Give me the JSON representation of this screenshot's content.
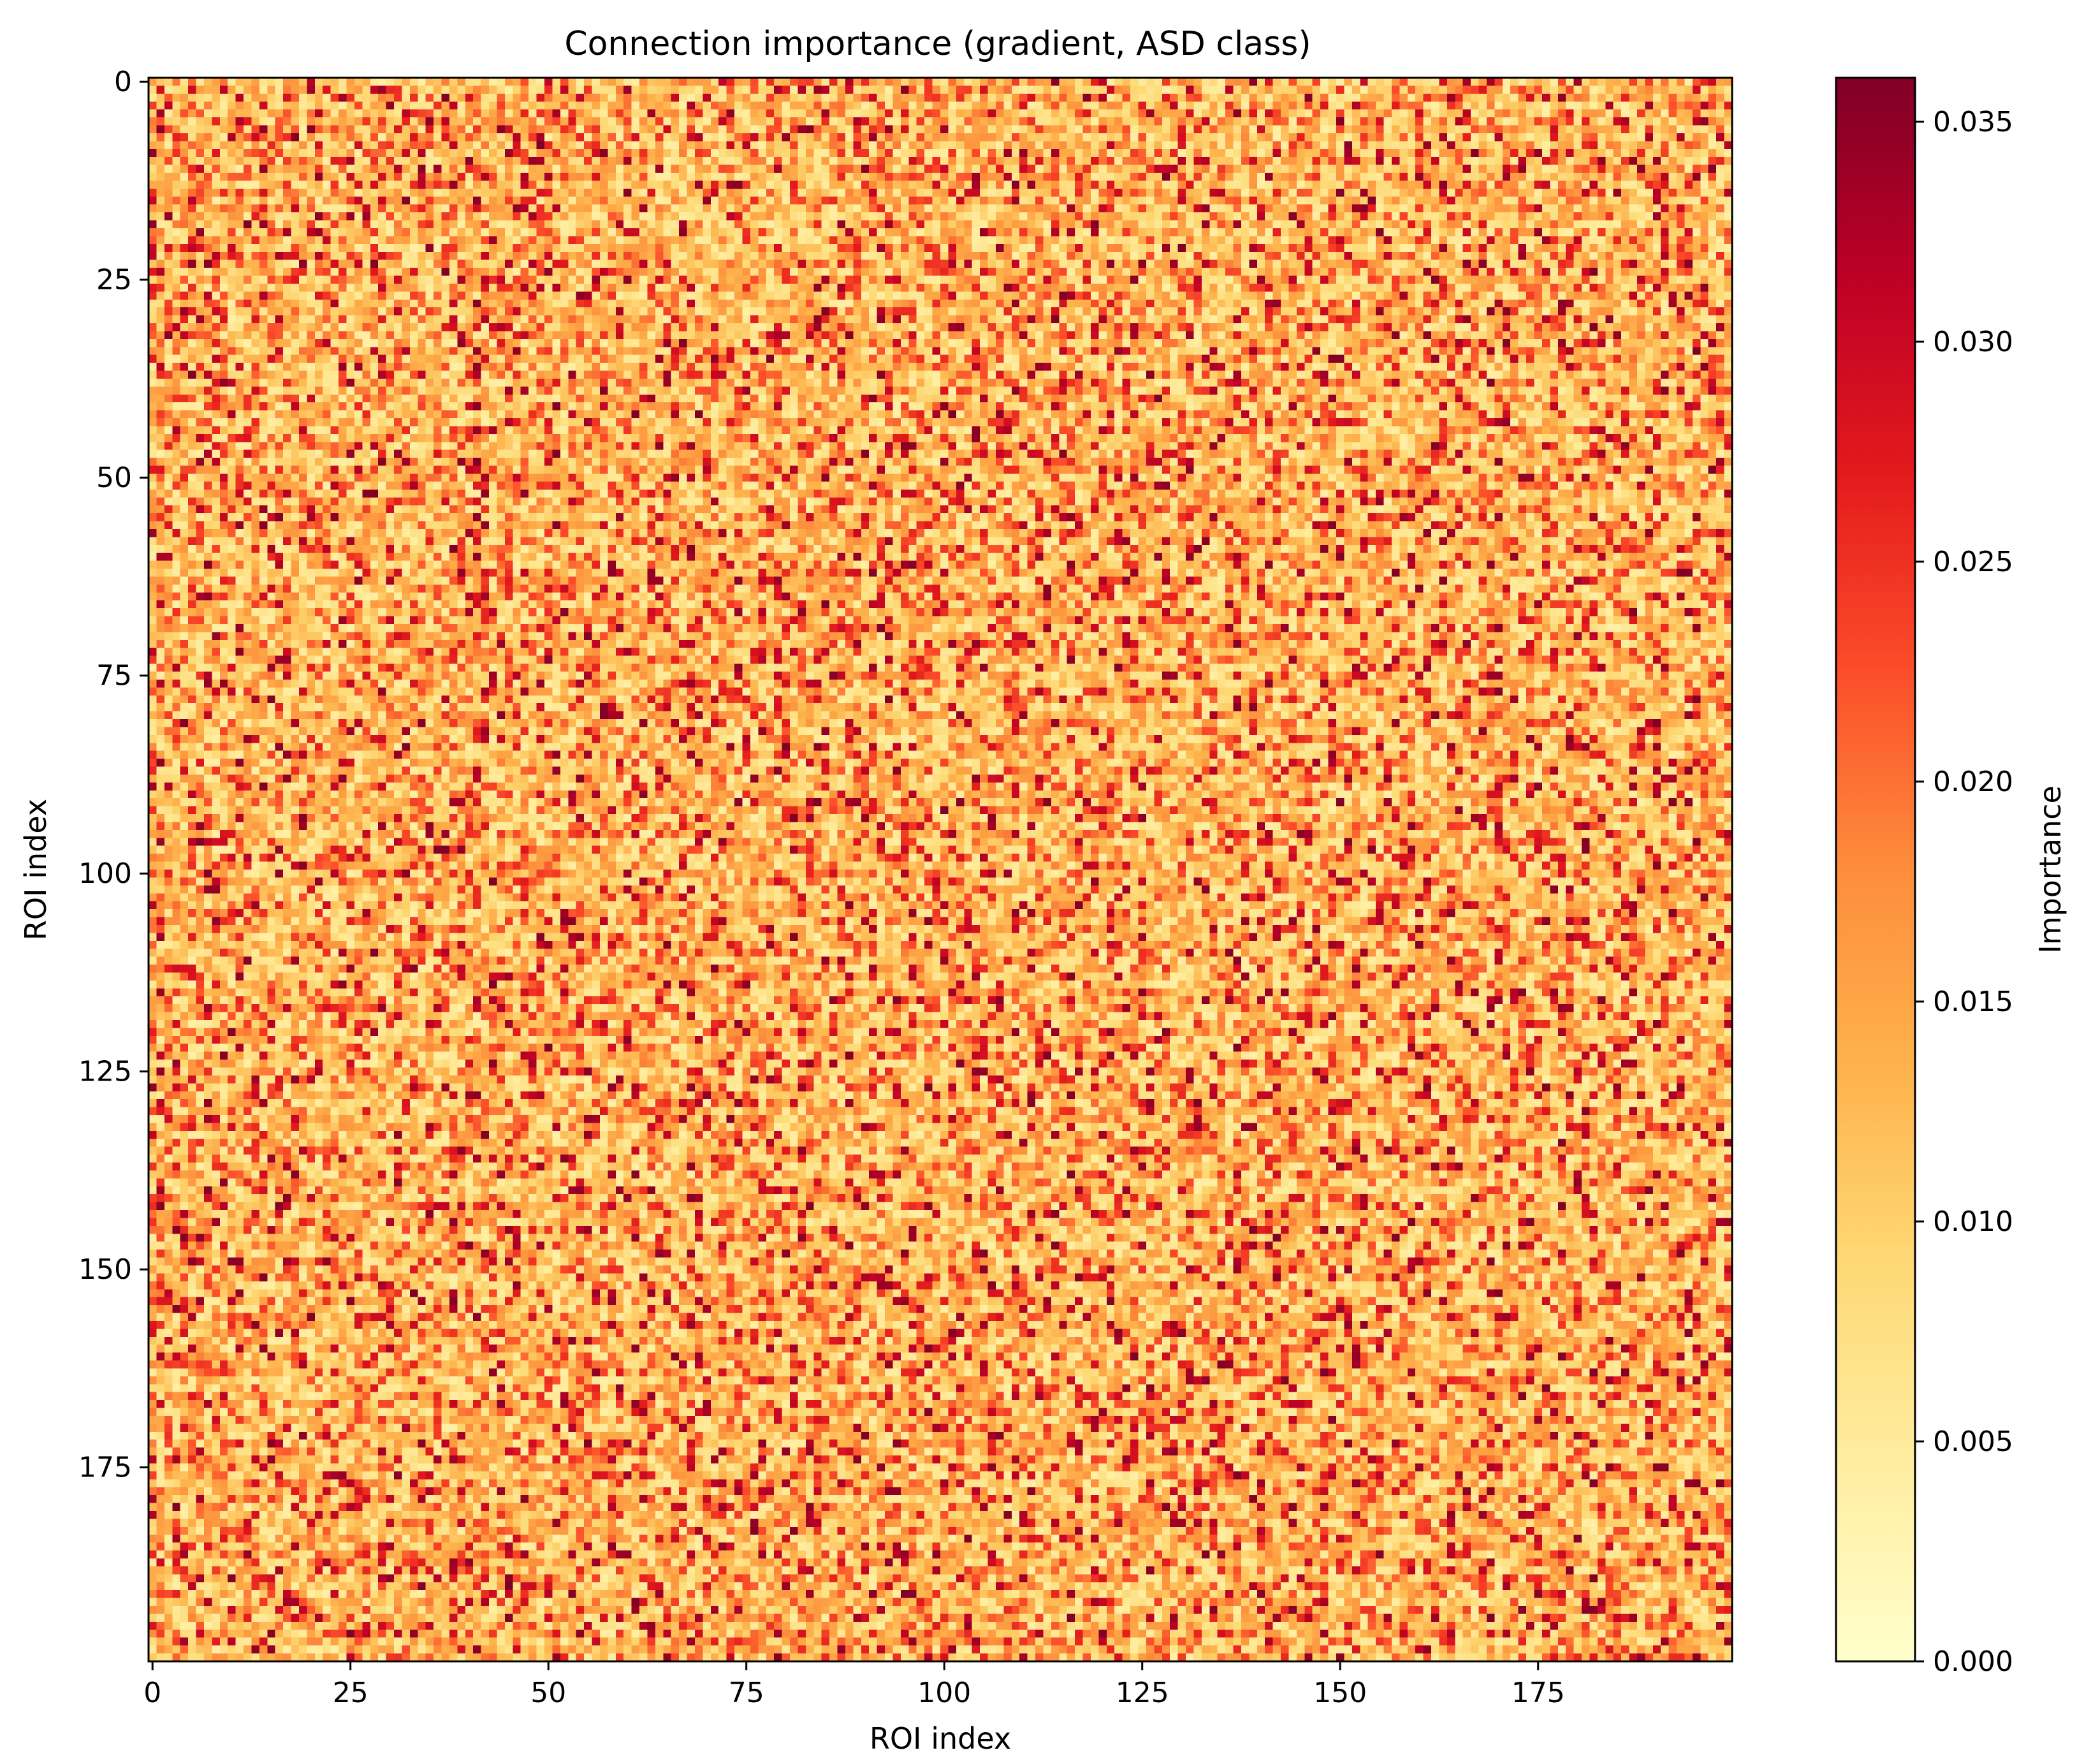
{
  "chart_data": {
    "type": "heatmap",
    "title": "Connection importance (gradient, ASD class)",
    "xlabel": "ROI index",
    "ylabel": "ROI index",
    "n_rows": 200,
    "n_cols": 200,
    "xlim": [
      0,
      199
    ],
    "ylim": [
      0,
      199
    ],
    "x_ticks": [
      0,
      25,
      50,
      75,
      100,
      125,
      150,
      175
    ],
    "y_ticks": [
      0,
      25,
      50,
      75,
      100,
      125,
      150,
      175
    ],
    "x_tick_labels": [
      "0",
      "25",
      "50",
      "75",
      "100",
      "125",
      "150",
      "175"
    ],
    "y_tick_labels": [
      "0",
      "25",
      "50",
      "75",
      "100",
      "125",
      "150",
      "175"
    ],
    "colormap": "YlOrRd",
    "colormap_stops": [
      "#ffffcc",
      "#ffeda0",
      "#fed976",
      "#feb24c",
      "#fd8d3c",
      "#fc4e2a",
      "#e31a1c",
      "#bd0026",
      "#800026"
    ],
    "value_range": [
      0.0,
      0.036
    ],
    "values_note": "200x200 matrix of connection importance scores; individual cell values are not printed on the figure. Cells are mostly 0.005-0.020 with scattered high-importance cells up to ~0.035 and no clear block structure.",
    "grid": false,
    "colorbar": {
      "label": "Importance",
      "ticks": [
        0.0,
        0.005,
        0.01,
        0.015,
        0.02,
        0.025,
        0.03,
        0.035
      ],
      "tick_labels": [
        "0.000",
        "0.005",
        "0.010",
        "0.015",
        "0.020",
        "0.025",
        "0.030",
        "0.035"
      ],
      "placement": "right"
    }
  }
}
